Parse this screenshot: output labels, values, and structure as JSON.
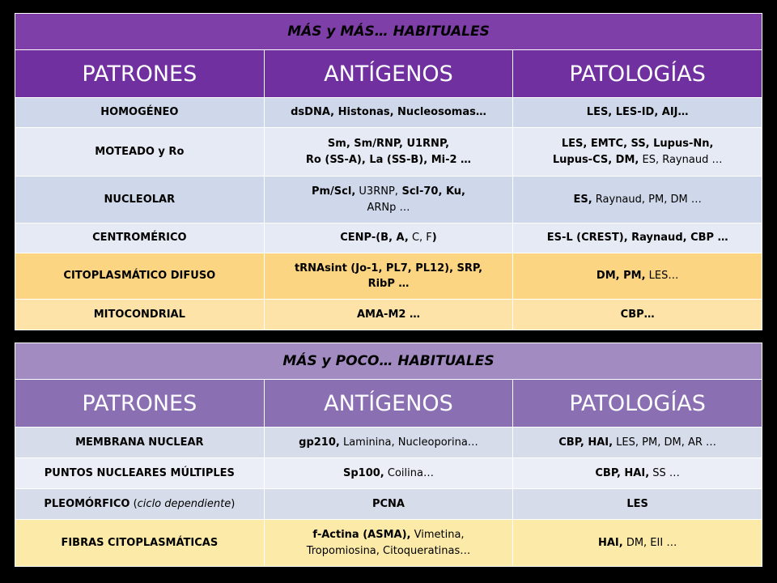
{
  "table1": {
    "title": "MÁS   y   MÁS…   HABITUALES",
    "headers": [
      "PATRONES",
      "ANTÍGENOS",
      "PATOLOGÍAS"
    ],
    "rows": [
      {
        "pattern": "HOMOGÉNEO",
        "antigens": "dsDNA,   Histonas,   Nucleosomas…",
        "pathologies": "LES,   LES-ID,   AIJ…"
      },
      {
        "pattern": "MOTEADO    y    Ro",
        "antigens_l1": "Sm,   Sm/RNP,   U1RNP,",
        "antigens_l2": "Ro (SS-A),    La (SS-B),    Mi-2 …",
        "pathologies_l1": "LES,   EMTC,   SS,   Lupus-Nn,",
        "pathologies_l2a": "Lupus-CS,   DM,",
        "pathologies_l2b": " ES,  Raynaud …"
      },
      {
        "pattern": "NUCLEOLAR",
        "antigens_a": "Pm/Scl,",
        "antigens_b": "  U3RNP,",
        "antigens_c": "  Scl-70,   Ku,",
        "antigens_d": "ARNp …",
        "pathologies_a": "ES,",
        "pathologies_b": "  Raynaud,   PM,   DM …"
      },
      {
        "pattern": "CENTROMÉRICO",
        "antigens_a": "CENP-(B, A,",
        "antigens_b": " C, F",
        "antigens_c": ")",
        "pathologies": "ES-L (CREST),    Raynaud,    CBP …"
      },
      {
        "pattern": "CITOPLASMÁTICO    DIFUSO",
        "antigens_l1": "tRNAsint (Jo-1,   PL7,   PL12),   SRP,",
        "antigens_l2": "RibP …",
        "pathologies_a": "DM,    PM,",
        "pathologies_b": "  LES…"
      },
      {
        "pattern": "MITOCONDRIAL",
        "antigens": "AMA-M2 …",
        "pathologies": "CBP…"
      }
    ]
  },
  "table2": {
    "title": "MÁS    y    POCO…    HABITUALES",
    "headers": [
      "PATRONES",
      "ANTÍGENOS",
      "PATOLOGÍAS"
    ],
    "rows": [
      {
        "pattern": "MEMBRANA   NUCLEAR",
        "antigens_a": "gp210,",
        "antigens_b": "  Laminina,  Nucleoporina…",
        "pathologies_a": "CBP,   HAI,",
        "pathologies_b": "  LES,  PM,  DM,  AR …"
      },
      {
        "pattern": "PUNTOS   NUCLEARES   MÚLTIPLES",
        "antigens_a": "Sp100,",
        "antigens_b": "  Coilina…",
        "pathologies_a": "CBP,   HAI,",
        "pathologies_b": "  SS …"
      },
      {
        "pattern_a": "PLEOMÓRFICO",
        "pattern_b": " (",
        "pattern_c": "ciclo dependiente",
        "pattern_d": ")",
        "antigens": "PCNA",
        "pathologies": "LES"
      },
      {
        "pattern": "FIBRAS   CITOPLASMÁTICAS",
        "antigens_a": "f-Actina (ASMA),",
        "antigens_b": "  Vimetina,",
        "antigens_c": "Tropomiosina,  Citoqueratinas…",
        "pathologies_a": "HAI,",
        "pathologies_b": "  DM,   EII …"
      }
    ]
  }
}
